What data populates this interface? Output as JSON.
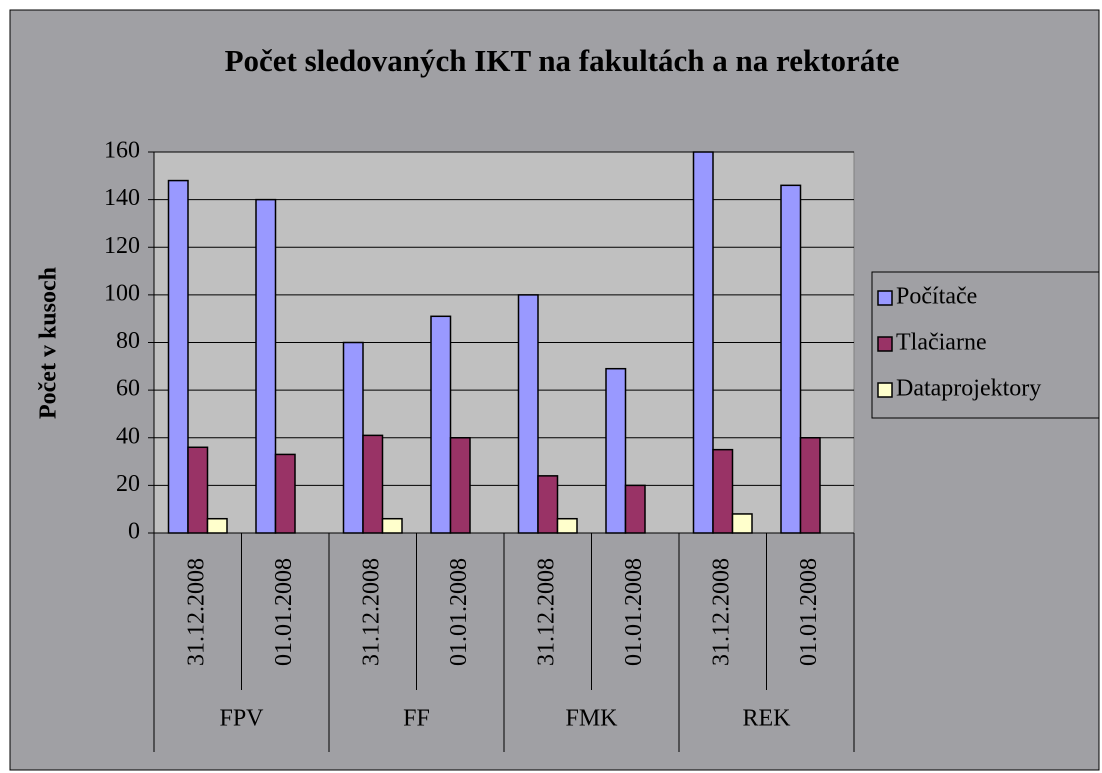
{
  "chart_data": {
    "type": "bar",
    "title": "Počet sledovaných IKT na fakultách a na rektoráte",
    "ylabel": "Počet v kusoch",
    "categories": [
      "31.12.2008",
      "01.01.2008",
      "31.12.2008",
      "01.01.2008",
      "31.12.2008",
      "01.01.2008",
      "31.12.2008",
      "01.01.2008"
    ],
    "groups": [
      "FPV",
      "FF",
      "FMK",
      "REK"
    ],
    "series": [
      {
        "name": "Počítače",
        "color": "#9999ff",
        "values": [
          148,
          140,
          80,
          91,
          100,
          69,
          160,
          146
        ]
      },
      {
        "name": "Tlačiarne",
        "color": "#993366",
        "values": [
          36,
          33,
          41,
          40,
          24,
          20,
          35,
          40
        ]
      },
      {
        "name": "Dataprojektory",
        "color": "#ffffcc",
        "values": [
          6,
          null,
          6,
          null,
          6,
          null,
          8,
          null
        ]
      }
    ],
    "ylim": [
      0,
      160
    ],
    "yticks": [
      0,
      20,
      40,
      60,
      80,
      100,
      120,
      140,
      160
    ],
    "grid": true,
    "legend": "right"
  }
}
